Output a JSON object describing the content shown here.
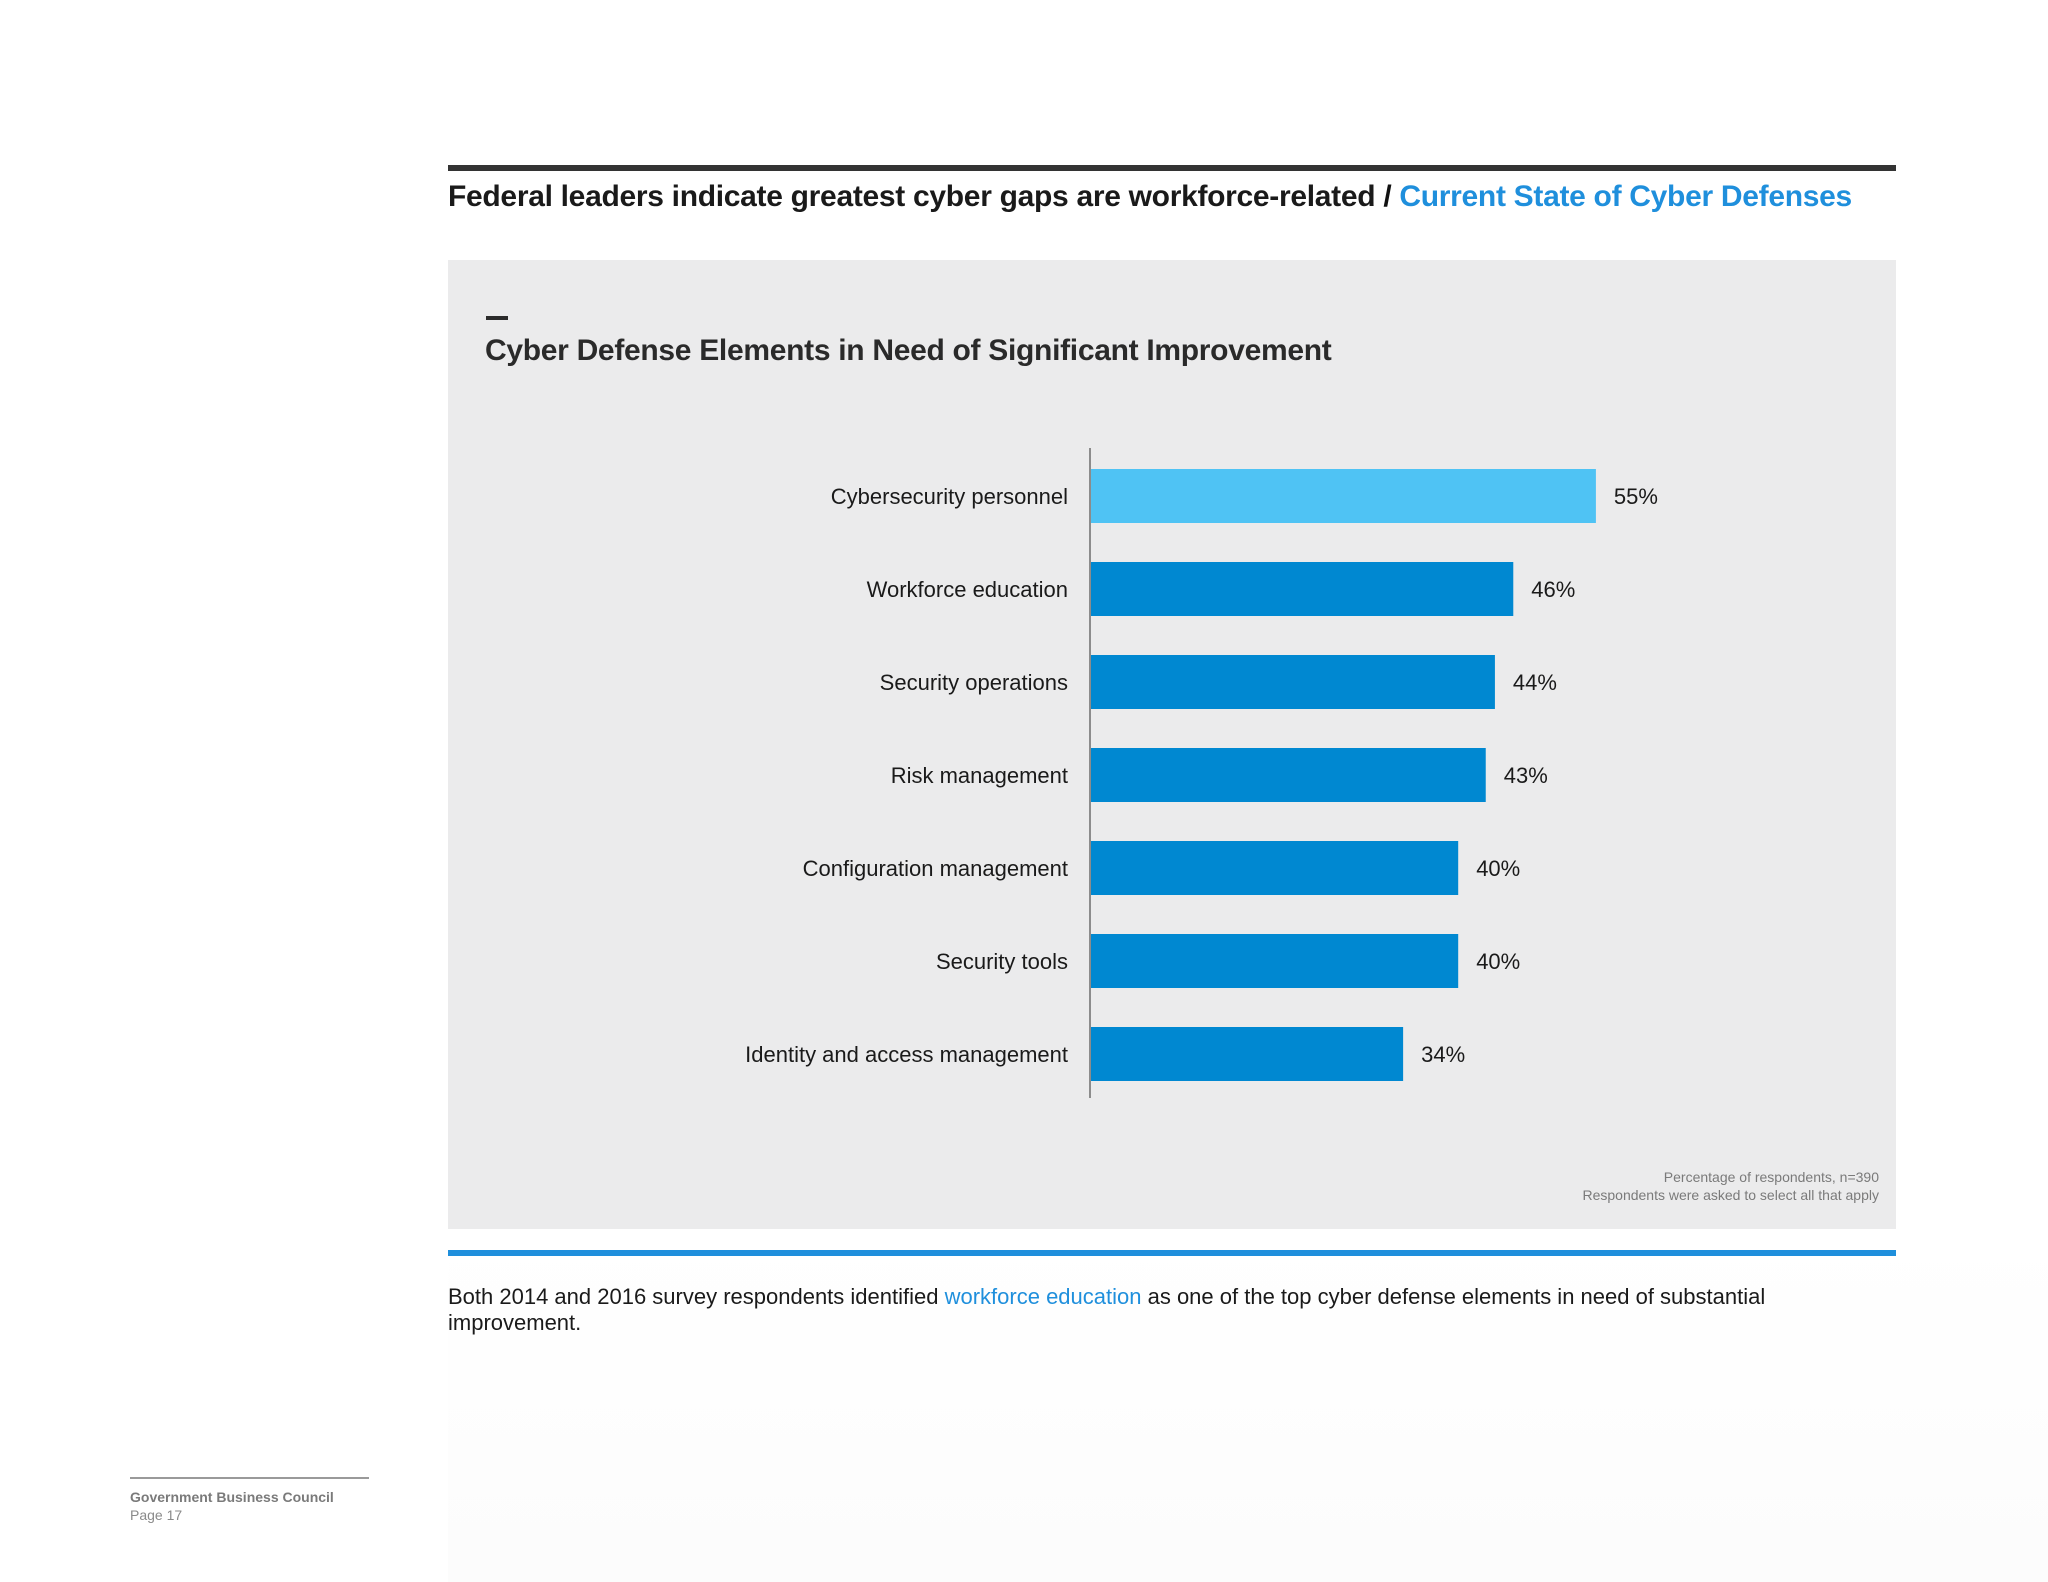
{
  "header": {
    "title": "Federal leaders indicate greatest cyber gaps are workforce-related",
    "separator": " / ",
    "section": "Current State of Cyber Defenses"
  },
  "colors": {
    "highlight_bar": "#4fc3f4",
    "bar": "#0088d1",
    "accent": "#1f8fdc",
    "panel_bg": "#ebebec"
  },
  "chart_data": {
    "type": "bar",
    "orientation": "horizontal",
    "title": "Cyber Defense Elements in Need of Significant Improvement",
    "categories": [
      "Cybersecurity personnel",
      "Workforce education",
      "Security operations",
      "Risk management",
      "Configuration management",
      "Security tools",
      "Identity and access management"
    ],
    "values": [
      55,
      46,
      44,
      43,
      40,
      40,
      34
    ],
    "value_labels": [
      "55%",
      "46%",
      "44%",
      "43%",
      "40%",
      "40%",
      "34%"
    ],
    "unit": "%",
    "highlighted_index": 0,
    "grid": false,
    "legend": "none",
    "notes": [
      "Percentage of respondents, n=390",
      "Respondents were asked to select all that apply"
    ]
  },
  "body": {
    "text_before": "Both 2014 and 2016 survey respondents identified ",
    "highlight": "workforce education",
    "text_after": " as one of the top cyber defense elements in need of substantial improvement."
  },
  "footer": {
    "org": "Government Business Council",
    "page": "Page 17"
  }
}
